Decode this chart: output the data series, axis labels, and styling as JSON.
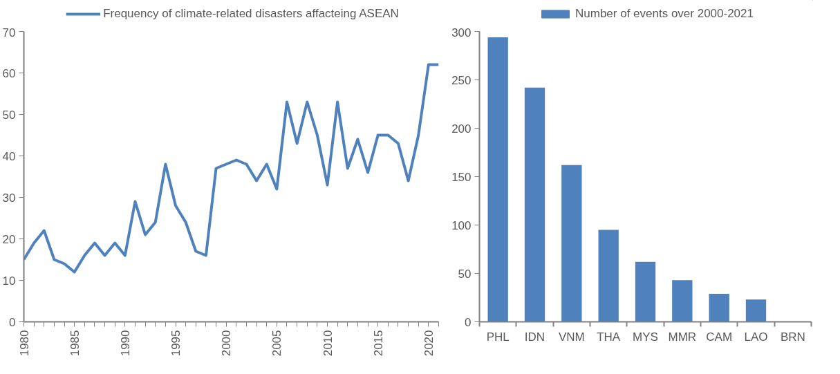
{
  "chart_data": [
    {
      "type": "line",
      "x": [
        1980,
        1981,
        1982,
        1983,
        1984,
        1985,
        1986,
        1987,
        1988,
        1989,
        1990,
        1991,
        1992,
        1993,
        1994,
        1995,
        1996,
        1997,
        1998,
        1999,
        2000,
        2001,
        2002,
        2003,
        2004,
        2005,
        2006,
        2007,
        2008,
        2009,
        2010,
        2011,
        2012,
        2013,
        2014,
        2015,
        2016,
        2017,
        2018,
        2019,
        2020,
        2021
      ],
      "series": [
        {
          "name": "Frequency of climate-related disasters affacteing ASEAN",
          "color": "#4f81bd",
          "values": [
            15,
            19,
            22,
            15,
            14,
            12,
            16,
            19,
            16,
            19,
            16,
            29,
            21,
            24,
            38,
            28,
            24,
            17,
            16,
            37,
            38,
            39,
            38,
            34,
            38,
            32,
            53,
            43,
            53,
            45,
            33,
            53,
            37,
            44,
            36,
            45,
            45,
            43,
            34,
            45,
            62,
            62
          ]
        }
      ],
      "xlim": [
        1980,
        2021
      ],
      "xticks": [
        1980,
        {
          "value": 1981,
          "label": null
        },
        {
          "value": 1982,
          "label": null
        },
        {
          "value": 1983,
          "label": null
        },
        {
          "value": 1984,
          "label": null
        },
        1985,
        {
          "value": 1986,
          "label": null
        },
        {
          "value": 1987,
          "label": null
        },
        {
          "value": 1988,
          "label": null
        },
        {
          "value": 1989,
          "label": null
        },
        1990,
        {
          "value": 1991,
          "label": null
        },
        {
          "value": 1992,
          "label": null
        },
        {
          "value": 1993,
          "label": null
        },
        {
          "value": 1994,
          "label": null
        },
        1995,
        {
          "value": 1996,
          "label": null
        },
        {
          "value": 1997,
          "label": null
        },
        {
          "value": 1998,
          "label": null
        },
        {
          "value": 1999,
          "label": null
        },
        2000,
        {
          "value": 2001,
          "label": null
        },
        {
          "value": 2002,
          "label": null
        },
        {
          "value": 2003,
          "label": null
        },
        {
          "value": 2004,
          "label": null
        },
        2005,
        {
          "value": 2006,
          "label": null
        },
        {
          "value": 2007,
          "label": null
        },
        {
          "value": 2008,
          "label": null
        },
        {
          "value": 2009,
          "label": null
        },
        2010,
        {
          "value": 2011,
          "label": null
        },
        {
          "value": 2012,
          "label": null
        },
        {
          "value": 2013,
          "label": null
        },
        {
          "value": 2014,
          "label": null
        },
        2015,
        {
          "value": 2016,
          "label": null
        },
        {
          "value": 2017,
          "label": null
        },
        {
          "value": 2018,
          "label": null
        },
        {
          "value": 2019,
          "label": null
        },
        2020,
        {
          "value": 2021,
          "label": null
        }
      ],
      "ylim": [
        0,
        70
      ],
      "yticks": [
        0,
        10,
        20,
        30,
        40,
        50,
        60,
        70
      ],
      "grid": false,
      "legend": "top",
      "marker": "none",
      "line_style": "solid"
    },
    {
      "type": "bar",
      "categories": [
        "PHL",
        "IDN",
        "VNM",
        "THA",
        "MYS",
        "MMR",
        "CAM",
        "LAO",
        "BRN"
      ],
      "series": [
        {
          "name": "Number of events over 2000-2021",
          "color": "#4f81bd",
          "values": [
            294,
            242,
            162,
            95,
            62,
            43,
            29,
            23,
            0
          ]
        }
      ],
      "ylim": [
        0,
        300
      ],
      "yticks": [
        0,
        50,
        100,
        150,
        200,
        250,
        300
      ],
      "grid": false,
      "legend": "top"
    }
  ]
}
